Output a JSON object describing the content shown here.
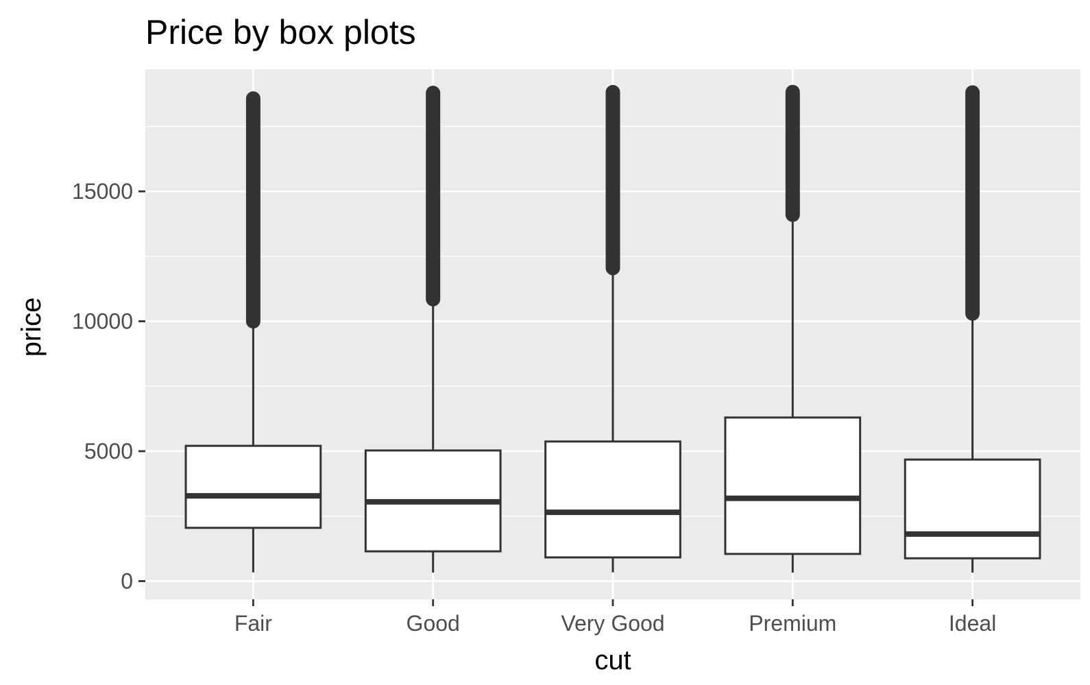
{
  "chart_data": {
    "type": "boxplot",
    "title": "Price by box plots",
    "xlabel": "cut",
    "ylabel": "price",
    "categories": [
      "Fair",
      "Good",
      "Very Good",
      "Premium",
      "Ideal"
    ],
    "ylim": [
      -700,
      19700
    ],
    "yticks": [
      0,
      5000,
      10000,
      15000
    ],
    "ytick_labels": [
      "0",
      "5000",
      "10000",
      "15000"
    ],
    "grid": true,
    "legend": "none",
    "boxes": [
      {
        "category": "Fair",
        "whisker_low": 337,
        "q1": 2050,
        "median": 3282,
        "q3": 5206,
        "whisker_high": 9950,
        "outlier_range": [
          10000,
          18574
        ]
      },
      {
        "category": "Good",
        "whisker_low": 327,
        "q1": 1145,
        "median": 3050,
        "q3": 5028,
        "whisker_high": 10850,
        "outlier_range": [
          10850,
          18788
        ]
      },
      {
        "category": "Very Good",
        "whisker_low": 336,
        "q1": 912,
        "median": 2648,
        "q3": 5373,
        "whisker_high": 12050,
        "outlier_range": [
          12050,
          18818
        ]
      },
      {
        "category": "Premium",
        "whisker_low": 326,
        "q1": 1046,
        "median": 3185,
        "q3": 6296,
        "whisker_high": 14100,
        "outlier_range": [
          14100,
          18823
        ]
      },
      {
        "category": "Ideal",
        "whisker_low": 326,
        "q1": 878,
        "median": 1810,
        "q3": 4678,
        "whisker_high": 10300,
        "outlier_range": [
          10300,
          18806
        ]
      }
    ],
    "colors": {
      "panel_background": "#ebebeb",
      "grid": "#ffffff",
      "box_fill": "#ffffff",
      "box_stroke": "#333333",
      "outlier": "#333333",
      "tick_text": "#4d4d4d",
      "title_text": "#000000"
    }
  }
}
